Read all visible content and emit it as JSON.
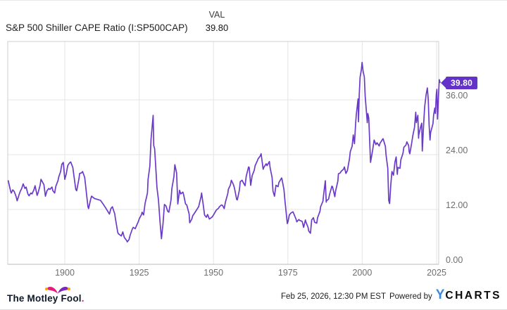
{
  "header": {
    "title": "S&P 500 Shiller CAPE Ratio (I:SP500CAP)",
    "val_label": "VAL",
    "val_value": "39.80"
  },
  "badge": {
    "value": "39.80"
  },
  "colors": {
    "line": "#6B3AC9",
    "badge_bg": "#6432C8",
    "grid": "#e5e5e5",
    "plot_border": "#cfcfcf",
    "axis_line": "#b9b9b9",
    "tick_label": "#6e6e6e",
    "ycharts_blue": "#3C8AE0",
    "fool_pink": "#E31C79",
    "fool_purple": "#7A28B5",
    "fool_yellow": "#F5A800"
  },
  "footer": {
    "timestamp": "Feb 25, 2026, 12:30 PM EST",
    "powered_by": "Powered by",
    "ycharts_y": "Y",
    "ycharts_charts": "CHARTS",
    "fool_text": "The Motley Fool",
    "fool_period": "."
  },
  "chart_data": {
    "type": "line",
    "title": "S&P 500 Shiller CAPE Ratio (I:SP500CAP)",
    "series_name": "S&P 500 Shiller CAPE Ratio",
    "latest_value": 39.8,
    "xlabel": "",
    "ylabel": "",
    "grid": true,
    "legend": "none",
    "x_range": [
      1881,
      2027
    ],
    "y_range": [
      0,
      48.8
    ],
    "x_ticks": [
      1900,
      1925,
      1950,
      1975,
      2000,
      2025
    ],
    "y_ticks": [
      {
        "value": 36,
        "label": "36.00"
      },
      {
        "value": 24,
        "label": "24.00"
      },
      {
        "value": 12,
        "label": "12.00"
      },
      {
        "value": 0,
        "label": "0.00"
      }
    ],
    "points": [
      [
        1881,
        18.3
      ],
      [
        1881.8,
        16.0
      ],
      [
        1882,
        15.6
      ],
      [
        1882.5,
        16.3
      ],
      [
        1883,
        15.9
      ],
      [
        1883.6,
        14.9
      ],
      [
        1884,
        13.9
      ],
      [
        1884.6,
        15.2
      ],
      [
        1885,
        15.9
      ],
      [
        1885.5,
        16.6
      ],
      [
        1886,
        17.6
      ],
      [
        1886.6,
        16.6
      ],
      [
        1887,
        16.9
      ],
      [
        1887.6,
        15.4
      ],
      [
        1888,
        15.0
      ],
      [
        1888.6,
        15.6
      ],
      [
        1889,
        15.4
      ],
      [
        1889.6,
        16.3
      ],
      [
        1890,
        17.2
      ],
      [
        1890.7,
        15.1
      ],
      [
        1891,
        15.6
      ],
      [
        1891.7,
        17.3
      ],
      [
        1892,
        18.6
      ],
      [
        1892.6,
        17.9
      ],
      [
        1893,
        17.4
      ],
      [
        1893.5,
        14.9
      ],
      [
        1894,
        16.1
      ],
      [
        1894.6,
        16.6
      ],
      [
        1895,
        16.4
      ],
      [
        1895.7,
        16.9
      ],
      [
        1896,
        16.1
      ],
      [
        1896.6,
        15.6
      ],
      [
        1897,
        17.1
      ],
      [
        1897.7,
        18.3
      ],
      [
        1898,
        19.2
      ],
      [
        1898.6,
        20.3
      ],
      [
        1899,
        21.9
      ],
      [
        1899.5,
        22.3
      ],
      [
        1900,
        18.6
      ],
      [
        1900.5,
        19.8
      ],
      [
        1901,
        21.6
      ],
      [
        1901.5,
        22.1
      ],
      [
        1902,
        22.4
      ],
      [
        1902.7,
        21.2
      ],
      [
        1903,
        19.7
      ],
      [
        1903.7,
        16.4
      ],
      [
        1904,
        16.1
      ],
      [
        1904.8,
        18.9
      ],
      [
        1905,
        19.9
      ],
      [
        1905.6,
        20.0
      ],
      [
        1906,
        20.3
      ],
      [
        1906.7,
        19.0
      ],
      [
        1907,
        17.2
      ],
      [
        1907.8,
        12.6
      ],
      [
        1908,
        12.2
      ],
      [
        1908.7,
        14.2
      ],
      [
        1909,
        14.9
      ],
      [
        1910,
        14.4
      ],
      [
        1911,
        14.2
      ],
      [
        1912,
        14.0
      ],
      [
        1913,
        13.1
      ],
      [
        1914,
        12.1
      ],
      [
        1915,
        11.0
      ],
      [
        1915.5,
        12.2
      ],
      [
        1916,
        12.6
      ],
      [
        1916.8,
        11.0
      ],
      [
        1917,
        10.1
      ],
      [
        1917.8,
        7.0
      ],
      [
        1918,
        6.7
      ],
      [
        1919,
        6.2
      ],
      [
        1919.5,
        7.1
      ],
      [
        1920,
        5.9
      ],
      [
        1920.8,
        5.2
      ],
      [
        1921,
        4.9
      ],
      [
        1921.6,
        5.4
      ],
      [
        1922,
        6.4
      ],
      [
        1922.7,
        7.7
      ],
      [
        1923,
        8.1
      ],
      [
        1923.7,
        7.8
      ],
      [
        1924,
        8.3
      ],
      [
        1924.8,
        9.5
      ],
      [
        1925,
        9.9
      ],
      [
        1925.8,
        10.9
      ],
      [
        1926,
        11.4
      ],
      [
        1926.5,
        10.8
      ],
      [
        1927,
        13.3
      ],
      [
        1927.8,
        15.6
      ],
      [
        1928,
        18.6
      ],
      [
        1928.6,
        21.5
      ],
      [
        1929,
        27.4
      ],
      [
        1929.7,
        32.6
      ],
      [
        1929.9,
        26.0
      ],
      [
        1930.2,
        25.3
      ],
      [
        1930.6,
        21.0
      ],
      [
        1931,
        16.8
      ],
      [
        1931.5,
        14.0
      ],
      [
        1932,
        9.4
      ],
      [
        1932.5,
        5.6
      ],
      [
        1932.8,
        7.5
      ],
      [
        1933,
        8.7
      ],
      [
        1933.5,
        13.1
      ],
      [
        1934,
        12.8
      ],
      [
        1934.6,
        11.6
      ],
      [
        1935,
        11.4
      ],
      [
        1935.7,
        14.0
      ],
      [
        1936,
        16.6
      ],
      [
        1936.7,
        19.2
      ],
      [
        1937,
        21.8
      ],
      [
        1937.6,
        20.0
      ],
      [
        1938,
        13.2
      ],
      [
        1938.6,
        16.2
      ],
      [
        1939,
        15.4
      ],
      [
        1939.7,
        15.8
      ],
      [
        1940,
        15.1
      ],
      [
        1940.6,
        13.2
      ],
      [
        1941,
        13.0
      ],
      [
        1941.8,
        11.0
      ],
      [
        1942,
        9.1
      ],
      [
        1942.7,
        9.9
      ],
      [
        1943,
        10.6
      ],
      [
        1943.7,
        11.3
      ],
      [
        1944,
        11.6
      ],
      [
        1945,
        12.6
      ],
      [
        1945.8,
        14.8
      ],
      [
        1946,
        15.6
      ],
      [
        1946.6,
        12.8
      ],
      [
        1947,
        10.8
      ],
      [
        1947.6,
        10.3
      ],
      [
        1948,
        10.9
      ],
      [
        1948.6,
        9.9
      ],
      [
        1949,
        10.1
      ],
      [
        1949.6,
        10.4
      ],
      [
        1950,
        10.8
      ],
      [
        1950.7,
        11.6
      ],
      [
        1951,
        11.9
      ],
      [
        1951.7,
        12.3
      ],
      [
        1952,
        12.6
      ],
      [
        1952.7,
        13.0
      ],
      [
        1953,
        12.9
      ],
      [
        1953.6,
        12.2
      ],
      [
        1954,
        13.6
      ],
      [
        1954.8,
        15.5
      ],
      [
        1955,
        16.4
      ],
      [
        1955.7,
        17.4
      ],
      [
        1956,
        18.4
      ],
      [
        1956.6,
        17.6
      ],
      [
        1957,
        16.8
      ],
      [
        1957.8,
        14.2
      ],
      [
        1958,
        14.1
      ],
      [
        1958.7,
        16.2
      ],
      [
        1959,
        18.1
      ],
      [
        1959.6,
        18.4
      ],
      [
        1960,
        17.9
      ],
      [
        1960.6,
        17.2
      ],
      [
        1961,
        19.3
      ],
      [
        1961.8,
        21.3
      ],
      [
        1962,
        21.2
      ],
      [
        1962.5,
        17.3
      ],
      [
        1963,
        19.4
      ],
      [
        1963.7,
        20.6
      ],
      [
        1964,
        21.6
      ],
      [
        1964.7,
        22.6
      ],
      [
        1965,
        23.1
      ],
      [
        1965.7,
        23.7
      ],
      [
        1966,
        24.2
      ],
      [
        1966.7,
        20.8
      ],
      [
        1967,
        21.3
      ],
      [
        1967.7,
        22.0
      ],
      [
        1968,
        21.6
      ],
      [
        1968.8,
        22.5
      ],
      [
        1969,
        21.2
      ],
      [
        1969.7,
        19.0
      ],
      [
        1970,
        16.0
      ],
      [
        1970.5,
        14.9
      ],
      [
        1971,
        17.3
      ],
      [
        1971.7,
        17.0
      ],
      [
        1972,
        17.9
      ],
      [
        1972.9,
        18.9
      ],
      [
        1973,
        18.7
      ],
      [
        1973.7,
        16.3
      ],
      [
        1974,
        14.0
      ],
      [
        1974.8,
        8.9
      ],
      [
        1975,
        9.2
      ],
      [
        1975.5,
        10.8
      ],
      [
        1976,
        11.2
      ],
      [
        1976.7,
        11.5
      ],
      [
        1977,
        11.1
      ],
      [
        1977.8,
        9.8
      ],
      [
        1978,
        9.3
      ],
      [
        1978.7,
        9.8
      ],
      [
        1979,
        9.6
      ],
      [
        1979.8,
        9.4
      ],
      [
        1980,
        8.9
      ],
      [
        1980.3,
        8.1
      ],
      [
        1980.9,
        9.7
      ],
      [
        1981,
        9.4
      ],
      [
        1981.8,
        8.1
      ],
      [
        1982,
        7.3
      ],
      [
        1982.6,
        6.8
      ],
      [
        1983,
        9.7
      ],
      [
        1983.6,
        10.2
      ],
      [
        1984,
        9.2
      ],
      [
        1984.7,
        9.0
      ],
      [
        1985,
        10.2
      ],
      [
        1985.8,
        11.6
      ],
      [
        1986,
        12.6
      ],
      [
        1986.8,
        13.8
      ],
      [
        1987,
        15.1
      ],
      [
        1987.6,
        18.3
      ],
      [
        1987.9,
        13.6
      ],
      [
        1988,
        13.9
      ],
      [
        1988.7,
        14.3
      ],
      [
        1989,
        15.2
      ],
      [
        1989.8,
        17.1
      ],
      [
        1990,
        17.0
      ],
      [
        1990.8,
        14.8
      ],
      [
        1991,
        15.9
      ],
      [
        1991.8,
        18.2
      ],
      [
        1992,
        19.8
      ],
      [
        1992.6,
        20.0
      ],
      [
        1993,
        20.4
      ],
      [
        1993.7,
        20.8
      ],
      [
        1994,
        21.3
      ],
      [
        1994.5,
        19.9
      ],
      [
        1995,
        20.5
      ],
      [
        1995.7,
        23.0
      ],
      [
        1996,
        24.7
      ],
      [
        1996.6,
        25.8
      ],
      [
        1997,
        28.3
      ],
      [
        1997.4,
        26.4
      ],
      [
        1997.8,
        31.0
      ],
      [
        1998,
        32.8
      ],
      [
        1998.6,
        36.2
      ],
      [
        1998.75,
        31.2
      ],
      [
        1999,
        37.3
      ],
      [
        1999.3,
        41.0
      ],
      [
        1999.7,
        42.5
      ],
      [
        1999.95,
        44.2
      ],
      [
        2000.3,
        42.2
      ],
      [
        2000.7,
        41.0
      ],
      [
        2001,
        36.8
      ],
      [
        2001.7,
        31.0
      ],
      [
        2001.9,
        33.0
      ],
      [
        2002.2,
        32.0
      ],
      [
        2002.8,
        22.3
      ],
      [
        2003,
        23.1
      ],
      [
        2003.5,
        25.0
      ],
      [
        2004,
        27.2
      ],
      [
        2004.6,
        26.2
      ],
      [
        2005,
        26.6
      ],
      [
        2005.7,
        25.9
      ],
      [
        2006,
        26.5
      ],
      [
        2006.8,
        27.3
      ],
      [
        2007,
        27.5
      ],
      [
        2007.8,
        25.8
      ],
      [
        2008,
        24.0
      ],
      [
        2008.6,
        21.0
      ],
      [
        2008.9,
        14.0
      ],
      [
        2009.2,
        13.3
      ],
      [
        2009.6,
        17.5
      ],
      [
        2010,
        20.3
      ],
      [
        2010.5,
        19.5
      ],
      [
        2011,
        22.4
      ],
      [
        2011.4,
        23.5
      ],
      [
        2011.8,
        19.7
      ],
      [
        2012,
        21.2
      ],
      [
        2012.7,
        21.0
      ],
      [
        2013,
        22.9
      ],
      [
        2013.7,
        24.3
      ],
      [
        2014,
        25.6
      ],
      [
        2014.7,
        26.1
      ],
      [
        2015,
        26.8
      ],
      [
        2015.6,
        26.0
      ],
      [
        2015.8,
        24.6
      ],
      [
        2016,
        24.2
      ],
      [
        2016.6,
        26.4
      ],
      [
        2017,
        28.1
      ],
      [
        2017.6,
        30.0
      ],
      [
        2018,
        33.3
      ],
      [
        2018.2,
        31.0
      ],
      [
        2018.7,
        32.6
      ],
      [
        2018.95,
        27.6
      ],
      [
        2019,
        28.3
      ],
      [
        2019.6,
        30.0
      ],
      [
        2020,
        30.9
      ],
      [
        2020.2,
        24.8
      ],
      [
        2020.7,
        31.2
      ],
      [
        2021,
        34.5
      ],
      [
        2021.5,
        37.2
      ],
      [
        2021.9,
        38.6
      ],
      [
        2022.2,
        36.0
      ],
      [
        2022.5,
        30.5
      ],
      [
        2022.8,
        27.2
      ],
      [
        2023,
        28.9
      ],
      [
        2023.4,
        29.8
      ],
      [
        2023.8,
        30.8
      ],
      [
        2024,
        32.7
      ],
      [
        2024.4,
        34.2
      ],
      [
        2024.6,
        33.0
      ],
      [
        2024.9,
        37.2
      ],
      [
        2025.1,
        38.3
      ],
      [
        2025.3,
        31.8
      ],
      [
        2025.5,
        34.5
      ],
      [
        2025.7,
        37.8
      ],
      [
        2025.9,
        40.4
      ],
      [
        2026.15,
        39.8
      ]
    ]
  }
}
